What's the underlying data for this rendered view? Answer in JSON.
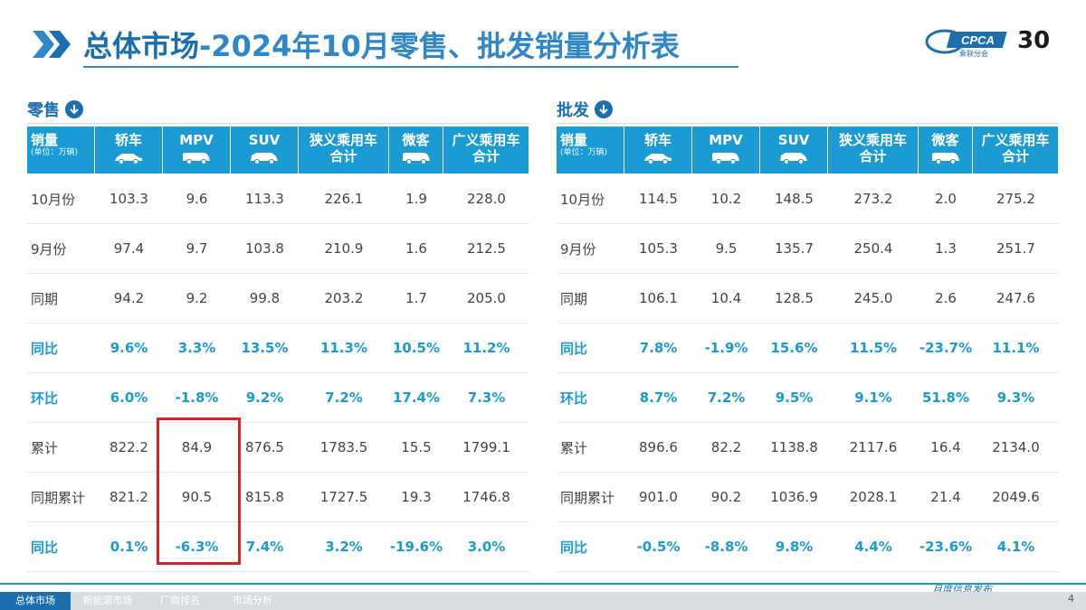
{
  "header": {
    "title_part1": "总体市场",
    "title_part2": "-2024年10月零售、批发销量分析表",
    "logo_text": "CPCA",
    "logo_sub": "乘联分会",
    "anniversary": "30"
  },
  "retail": {
    "label": "零售",
    "columns": [
      "轿车",
      "MPV",
      "SUV",
      "狭义乘用车合计",
      "微客",
      "广义乘用车合计"
    ],
    "first_header": "销量",
    "unit": "(单位：万辆)",
    "rows": [
      {
        "label": "10月份",
        "values": [
          "103.3",
          "9.6",
          "113.3",
          "226.1",
          "1.9",
          "228.0"
        ],
        "pct": false
      },
      {
        "label": "9月份",
        "values": [
          "97.4",
          "9.7",
          "103.8",
          "210.9",
          "1.6",
          "212.5"
        ],
        "pct": false
      },
      {
        "label": "同期",
        "values": [
          "94.2",
          "9.2",
          "99.8",
          "203.2",
          "1.7",
          "205.0"
        ],
        "pct": false
      },
      {
        "label": "同比",
        "values": [
          "9.6%",
          "3.3%",
          "13.5%",
          "11.3%",
          "10.5%",
          "11.2%"
        ],
        "pct": true
      },
      {
        "label": "环比",
        "values": [
          "6.0%",
          "-1.8%",
          "9.2%",
          "7.2%",
          "17.4%",
          "7.3%"
        ],
        "pct": true
      },
      {
        "label": "累计",
        "values": [
          "822.2",
          "84.9",
          "876.5",
          "1783.5",
          "15.5",
          "1799.1"
        ],
        "pct": false
      },
      {
        "label": "同期累计",
        "values": [
          "821.2",
          "90.5",
          "815.8",
          "1727.5",
          "19.3",
          "1746.8"
        ],
        "pct": false
      },
      {
        "label": "同比",
        "values": [
          "0.1%",
          "-6.3%",
          "7.4%",
          "3.2%",
          "-19.6%",
          "3.0%"
        ],
        "pct": true
      }
    ]
  },
  "wholesale": {
    "label": "批发",
    "columns": [
      "轿车",
      "MPV",
      "SUV",
      "狭义乘用车合计",
      "微客",
      "广义乘用车合计"
    ],
    "first_header": "销量",
    "unit": "(单位：万辆)",
    "rows": [
      {
        "label": "10月份",
        "values": [
          "114.5",
          "10.2",
          "148.5",
          "273.2",
          "2.0",
          "275.2"
        ],
        "pct": false
      },
      {
        "label": "9月份",
        "values": [
          "105.3",
          "9.5",
          "135.7",
          "250.4",
          "1.3",
          "251.7"
        ],
        "pct": false
      },
      {
        "label": "同期",
        "values": [
          "106.1",
          "10.4",
          "128.5",
          "245.0",
          "2.6",
          "247.6"
        ],
        "pct": false
      },
      {
        "label": "同比",
        "values": [
          "7.8%",
          "-1.9%",
          "15.6%",
          "11.5%",
          "-23.7%",
          "11.1%"
        ],
        "pct": true
      },
      {
        "label": "环比",
        "values": [
          "8.7%",
          "7.2%",
          "9.5%",
          "9.1%",
          "51.8%",
          "9.3%"
        ],
        "pct": true
      },
      {
        "label": "累计",
        "values": [
          "896.6",
          "82.2",
          "1138.8",
          "2117.6",
          "16.4",
          "2134.0"
        ],
        "pct": false
      },
      {
        "label": "同期累计",
        "values": [
          "901.0",
          "90.2",
          "1036.9",
          "2028.1",
          "21.4",
          "2049.6"
        ],
        "pct": false
      },
      {
        "label": "同比",
        "values": [
          "-0.5%",
          "-8.8%",
          "9.8%",
          "4.4%",
          "-23.6%",
          "4.1%"
        ],
        "pct": true
      }
    ]
  },
  "footer": {
    "tabs": [
      "总体市场",
      "新能源市场",
      "厂商排名",
      "市场分析"
    ],
    "active_tab": 0,
    "right_text": "月度信息发布",
    "page_number": "4"
  },
  "colors": {
    "header_blue": "#1a9bd4",
    "title_blue": "#1b6fb0",
    "highlight_red": "#e02020"
  }
}
